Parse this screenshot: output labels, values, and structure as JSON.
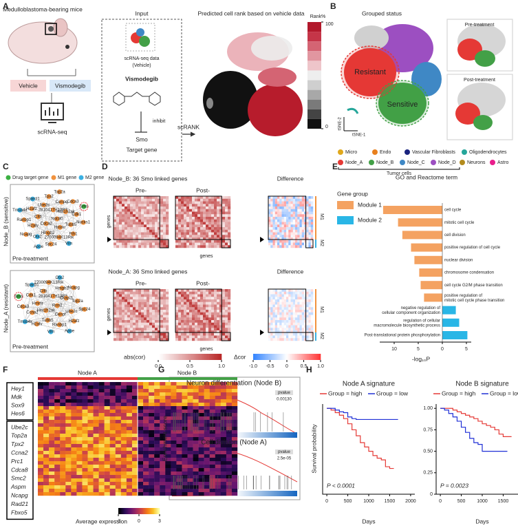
{
  "panel_labels": [
    "A",
    "B",
    "C",
    "D",
    "E",
    "F",
    "G",
    "H"
  ],
  "a": {
    "mouse_label": "Medulloblastoma-bearing mice",
    "vehicle": "Vehicle",
    "treatment": "Vismodegib",
    "sequencing": "scRNA-seq",
    "input_title": "Input",
    "input_data": [
      "scRNA-seq data",
      "(Vehicle)"
    ],
    "drug": "Vismodegib",
    "inhibit": "inhibit",
    "target": "Smo",
    "target_label": "Target gene",
    "method": "scRANK",
    "plot_title": "Predicted cell rank based on vehicle data",
    "colorbar_title": "Rank%",
    "colorbar_ticks": [
      100,
      0
    ],
    "colorbar_colors": [
      "#b2182b",
      "#c53548",
      "#d46473",
      "#e196a0",
      "#eec5ca",
      "#eeeeee",
      "#cfcfcf",
      "#a8a8a8",
      "#7a7a7a",
      "#444444",
      "#111111"
    ]
  },
  "b": {
    "title": "Grouped status",
    "resistant": "Resistant",
    "sensitive": "Sensitive",
    "pre": "Pre-treatment",
    "post": "Post-treatment",
    "y_label": "tSNE-2",
    "x_label": "tSNE-1",
    "tumor_label": "Tumor cells",
    "legend": [
      {
        "name": "Micro",
        "color": "#e0a81c"
      },
      {
        "name": "Endo",
        "color": "#e8801e"
      },
      {
        "name": "Vascular Fibroblasts",
        "color": "#1a237e"
      },
      {
        "name": "Oligodendrocytes",
        "color": "#26a69a"
      },
      {
        "name": "Node_A",
        "color": "#e53935"
      },
      {
        "name": "Node_B",
        "color": "#43a047"
      },
      {
        "name": "Node_C",
        "color": "#3f88c5"
      },
      {
        "name": "Node_D",
        "color": "#9c4fc1"
      },
      {
        "name": "Neurons",
        "color": "#b38b1d"
      },
      {
        "name": "Astro",
        "color": "#e91e8c"
      }
    ]
  },
  "c": {
    "legend": [
      {
        "name": "Drug target gene",
        "color": "#3cb043"
      },
      {
        "name": "M1 gene",
        "color": "#f0923e"
      },
      {
        "name": "M2 gene",
        "color": "#3ab0e2"
      }
    ],
    "networks": [
      {
        "title": "Node_B (sensitive)",
        "subtitle": "Pre-treatment",
        "genes": [
          {
            "name": "Ndc80",
            "color": "#f0923e"
          },
          {
            "name": "Cdca2",
            "color": "#f0923e"
          },
          {
            "name": "2810417H13Rik",
            "color": "#f0923e"
          },
          {
            "name": "Hmmr",
            "color": "#f0923e"
          },
          {
            "name": "Cltb",
            "color": "#f0923e"
          },
          {
            "name": "Hist1h2ak",
            "color": "#f0923e"
          },
          {
            "name": "Hmgb2",
            "color": "#f0923e"
          },
          {
            "name": "Ube2c",
            "color": "#f0923e"
          },
          {
            "name": "Tubb5",
            "color": "#f0923e"
          },
          {
            "name": "H2afv",
            "color": "#f0923e"
          },
          {
            "name": "Cenpq",
            "color": "#f0923e"
          },
          {
            "name": "2700094K13Rik",
            "color": "#f0923e"
          },
          {
            "name": "H2afz",
            "color": "#f0923e"
          },
          {
            "name": "Cdk1",
            "color": "#f0923e"
          },
          {
            "name": "Otx2",
            "color": "#3ab0e2"
          },
          {
            "name": "Tpx2",
            "color": "#f0923e"
          },
          {
            "name": "Fth1",
            "color": "#f0923e"
          },
          {
            "name": "Ranbp1",
            "color": "#f0923e"
          },
          {
            "name": "Cdca3",
            "color": "#f0923e"
          },
          {
            "name": "Spc24",
            "color": "#f0923e"
          },
          {
            "name": "Sparcl1",
            "color": "#3ab0e2"
          },
          {
            "name": "Nucks1",
            "color": "#f0923e"
          },
          {
            "name": "Ncapg",
            "color": "#f0923e"
          },
          {
            "name": "Top2a",
            "color": "#f0923e"
          },
          {
            "name": "Vim",
            "color": "#3ab0e2"
          },
          {
            "name": "Tmsb4x",
            "color": "#3ab0e2"
          },
          {
            "name": "Smo",
            "color": "#3cb043"
          },
          {
            "name": "Apoe",
            "color": "#3ab0e2"
          }
        ]
      },
      {
        "title": "Node_A (resistant)",
        "subtitle": "Pre-treatment",
        "genes": [
          {
            "name": "Rrm2",
            "color": "#f0923e"
          },
          {
            "name": "Hist1h2ak",
            "color": "#f0923e"
          },
          {
            "name": "2810417H13Rik",
            "color": "#f0923e"
          },
          {
            "name": "Cenpf",
            "color": "#f0923e"
          },
          {
            "name": "Hmmr",
            "color": "#f0923e"
          },
          {
            "name": "Ckap2l",
            "color": "#f0923e"
          },
          {
            "name": "Tubb5",
            "color": "#f0923e"
          },
          {
            "name": "Cltb",
            "color": "#f0923e"
          },
          {
            "name": "Ube2c",
            "color": "#f0923e"
          },
          {
            "name": "Ccna2",
            "color": "#f0923e"
          },
          {
            "name": "Hmgb2",
            "color": "#f0923e"
          },
          {
            "name": "Ranbp1",
            "color": "#f0923e"
          },
          {
            "name": "Cdk1",
            "color": "#f0923e"
          },
          {
            "name": "Top2a",
            "color": "#f0923e"
          },
          {
            "name": "H2afv",
            "color": "#f0923e"
          },
          {
            "name": "2700094K13Rik",
            "color": "#f0923e"
          },
          {
            "name": "H2afz",
            "color": "#f0923e"
          },
          {
            "name": "Cdca3",
            "color": "#f0923e"
          },
          {
            "name": "Ncapg",
            "color": "#f0923e"
          },
          {
            "name": "Vim",
            "color": "#3ab0e2"
          },
          {
            "name": "Sparcl1",
            "color": "#3ab0e2"
          },
          {
            "name": "Spc24",
            "color": "#f0923e"
          },
          {
            "name": "Tmsb4x",
            "color": "#3ab0e2"
          },
          {
            "name": "Otx2",
            "color": "#3ab0e2"
          },
          {
            "name": "Apoe",
            "color": "#3ab0e2"
          },
          {
            "name": "Smo",
            "color": "#3cb043"
          }
        ]
      }
    ]
  },
  "d": {
    "rows": [
      {
        "title": "Node_B: 36 Smo linked genes",
        "pre": "Pre-",
        "post": "Post-"
      },
      {
        "title": "Node_A: 36 Smo linked genes",
        "pre": "Pre-",
        "post": "Post-"
      }
    ],
    "difference": "Difference",
    "genes": "genes",
    "modules": [
      "M1",
      "M2"
    ],
    "abs_label": "abs(cor)",
    "abs_ticks": [
      {
        "value": 0,
        "label": "0.0"
      },
      0.5,
      {
        "value": 1,
        "label": "1.0"
      }
    ],
    "delta_label": "Δcor",
    "delta_ticks": [
      {
        "value": -1,
        "label": "-1.0"
      },
      -0.5,
      0,
      0.5,
      {
        "value": 1,
        "label": "1.0"
      }
    ]
  },
  "f": {
    "groups": [
      {
        "name": "Node A",
        "color": "#e53935"
      },
      {
        "name": "Node B",
        "color": "#43a047"
      }
    ],
    "gene_sets": [
      [
        "Hey1",
        "Mdk",
        "Sox9",
        "Hes6"
      ],
      [
        "Ube2c",
        "Top2a",
        "Tpx2",
        "Ccna2",
        "Prc1",
        "Cdca8",
        "Smc2",
        "Aspm",
        "Ncapg",
        "Rad21",
        "Fbxo5"
      ]
    ],
    "colorbar_label": "Average expression",
    "colorbar_ticks": [
      -3,
      0,
      3
    ]
  },
  "g": {
    "y_label": "Enrichment score",
    "plots": [
      {
        "title": "Neuron differentiation (Node B)",
        "p_label": "pvalue",
        "p_value": "0.00130"
      },
      {
        "title": "Cell division (Node A)",
        "p_label": "pvalue",
        "p_value": "2.5e-05"
      }
    ]
  },
  "chart_data": [
    {
      "type": "barh",
      "title": "GO and Reactome term",
      "legend_title": "Gene group",
      "categories": [
        "cell cycle",
        "mitotic cell cycle",
        "cell division",
        "positive regulation of cell cycle",
        "nuclear division",
        "chromosome condensation",
        "cell cycle G2/M phase transition",
        "positive regulation of\nmitotic cell cycle phase transition",
        "negative regulation of\ncellular component organization",
        "regulation of cellular\nmacromolecule biosynthetic process",
        "Post-translational protein phosphorylation"
      ],
      "series": [
        {
          "name": "Module 1",
          "color": "#f4a261",
          "values": [
            -12.3,
            -9.2,
            -8.3,
            -6.5,
            -5.8,
            -4.8,
            -4.5,
            -3.8,
            null,
            null,
            null
          ]
        },
        {
          "name": "Module 2",
          "color": "#29b6e6",
          "values": [
            null,
            null,
            null,
            null,
            null,
            null,
            null,
            null,
            2.8,
            3.5,
            5.2
          ]
        }
      ],
      "xlabel": "-log₁₀P",
      "xlim": [
        -13,
        6
      ],
      "xticks": [
        {
          "value": -10,
          "label": "10"
        },
        {
          "value": -5,
          "label": "5"
        },
        0,
        5
      ]
    },
    {
      "type": "step",
      "title": "Node A signature",
      "x": [
        0,
        100,
        200,
        300,
        400,
        500,
        600,
        700,
        800,
        900,
        1000,
        1100,
        1200,
        1300,
        1400,
        1500,
        1600,
        1700
      ],
      "series": [
        {
          "name": "Group = high",
          "color": "#e53935",
          "values": [
            1,
            0.98,
            0.95,
            0.92,
            0.88,
            0.82,
            0.75,
            0.68,
            0.6,
            0.55,
            0.5,
            0.45,
            0.42,
            0.4,
            0.32,
            0.3,
            0.3,
            null
          ]
        },
        {
          "name": "Group = low",
          "color": "#1f2fd6",
          "values": [
            1,
            1,
            0.98,
            0.96,
            0.95,
            0.9,
            0.88,
            0.87,
            0.87,
            0.87,
            0.87,
            0.87,
            0.87,
            0.87,
            0.87,
            0.87,
            0.87,
            0.87
          ]
        }
      ],
      "annotation": "P < 0.0001",
      "xlabel": "Days",
      "ylabel": "Survival probability",
      "xlim": [
        -100,
        2100
      ],
      "xticks": [
        0,
        500,
        1000,
        1500,
        2000
      ],
      "ylim": [
        0,
        1.05
      ]
    },
    {
      "type": "step",
      "title": "Node B signature",
      "x": [
        0,
        100,
        200,
        300,
        400,
        500,
        600,
        700,
        800,
        900,
        1000,
        1100,
        1200,
        1300,
        1400,
        1500,
        1600,
        1700
      ],
      "series": [
        {
          "name": "Group = high",
          "color": "#e53935",
          "values": [
            1,
            1,
            1,
            0.98,
            0.96,
            0.94,
            0.92,
            0.9,
            0.88,
            0.85,
            0.82,
            0.8,
            0.78,
            0.75,
            0.7,
            0.67,
            0.67,
            0.67
          ]
        },
        {
          "name": "Group = low",
          "color": "#1f2fd6",
          "values": [
            1,
            0.98,
            0.94,
            0.9,
            0.85,
            0.78,
            0.72,
            0.65,
            0.6,
            0.58,
            0.5,
            0.5,
            0.5,
            0.5,
            0.5,
            0.5,
            0.5,
            null
          ]
        }
      ],
      "annotation": "P = 0.0023",
      "xlabel": "Days",
      "xlim": [
        -100,
        2100
      ],
      "xticks": [
        0,
        500,
        1000,
        1500,
        2000
      ],
      "ylim": [
        0,
        1.05
      ],
      "yticks": [
        0,
        0.25,
        {
          "value": 0.5,
          "label": "0.50"
        },
        0.75,
        {
          "value": 1,
          "label": "1.00"
        }
      ]
    }
  ]
}
